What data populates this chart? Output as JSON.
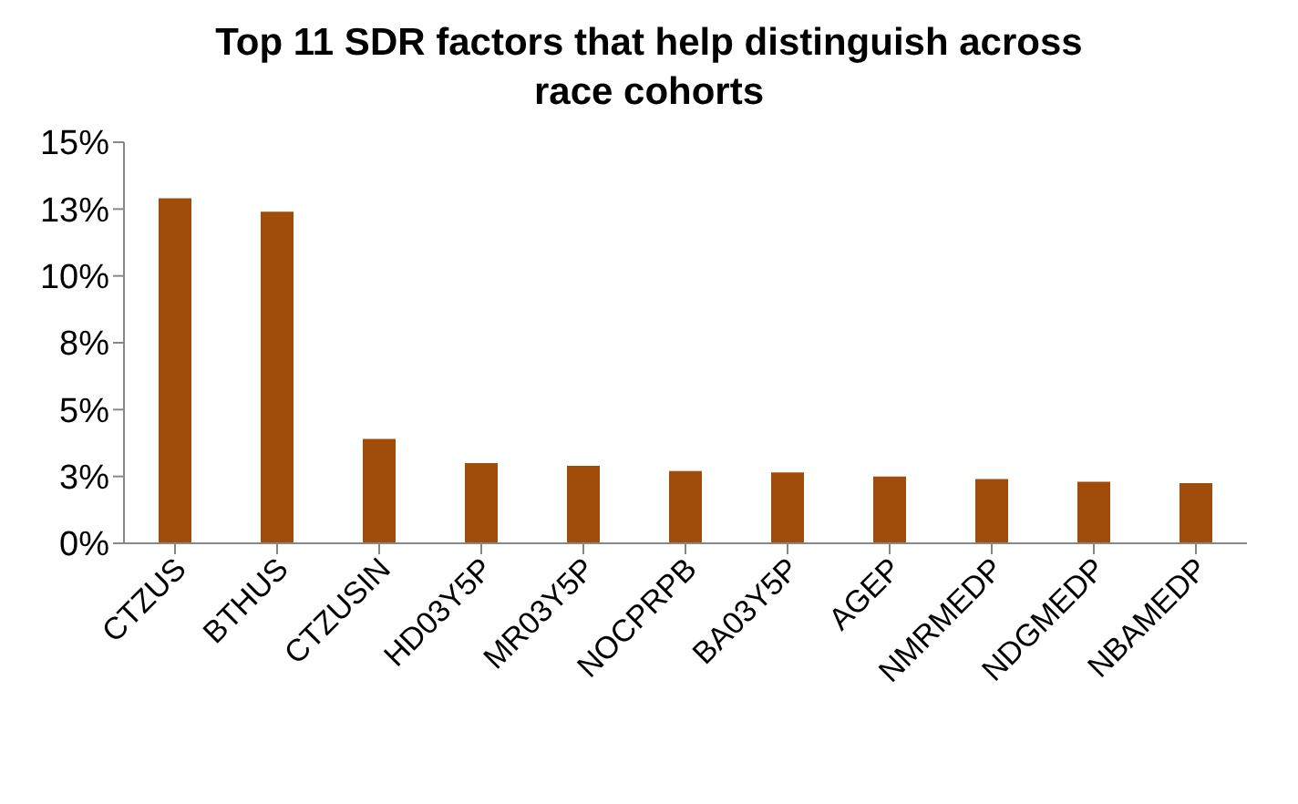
{
  "chart_data": {
    "type": "bar",
    "title": "Top 11 SDR factors that help distinguish across race cohorts",
    "categories": [
      "CTZUS",
      "BTHUS",
      "CTZUSIN",
      "HD03Y5P",
      "MR03Y5P",
      "NOCPRPB",
      "BA03Y5P",
      "AGEP",
      "NMRMEDP",
      "NDGMEDP",
      "NBAMEDP"
    ],
    "values": [
      12.9,
      12.4,
      3.9,
      3.0,
      2.9,
      2.7,
      2.65,
      2.5,
      2.4,
      2.3,
      2.25
    ],
    "color": "#a04c0a",
    "ylim": [
      0,
      15
    ],
    "yticks": [
      {
        "value": 0,
        "label": "0%"
      },
      {
        "value": 2.5,
        "label": "3%"
      },
      {
        "value": 5,
        "label": "5%"
      },
      {
        "value": 7.5,
        "label": "8%"
      },
      {
        "value": 10,
        "label": "10%"
      },
      {
        "value": 12.5,
        "label": "13%"
      },
      {
        "value": 15,
        "label": "15%"
      }
    ],
    "grid": false,
    "legend": false
  }
}
